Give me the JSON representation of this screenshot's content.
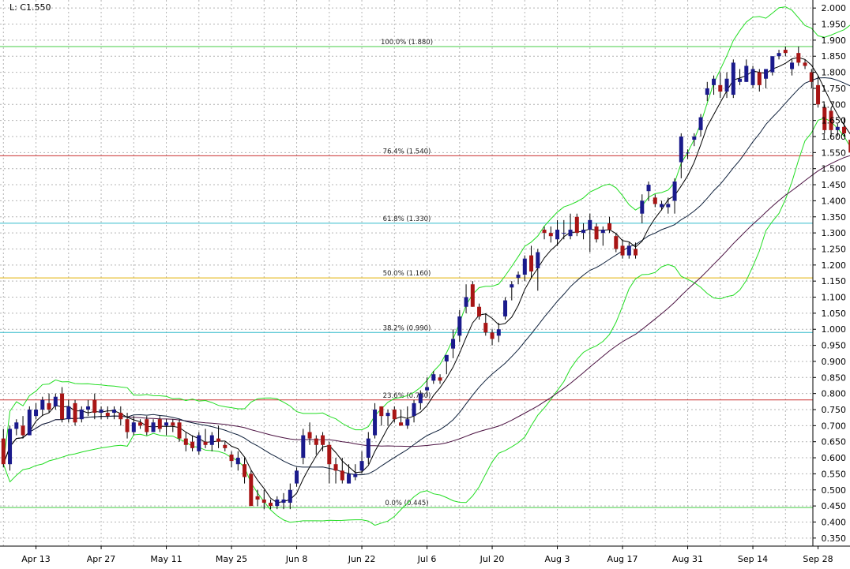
{
  "header_text": "L: C1.550",
  "chart_data": {
    "type": "candlestick",
    "y_range": [
      0.325,
      2.025
    ],
    "y_ticks": [
      "0.350",
      "0.400",
      "0.450",
      "0.500",
      "0.550",
      "0.600",
      "0.650",
      "0.700",
      "0.750",
      "0.800",
      "0.850",
      "0.900",
      "0.950",
      "1.000",
      "1.050",
      "1.100",
      "1.150",
      "1.200",
      "1.250",
      "1.300",
      "1.350",
      "1.400",
      "1.450",
      "1.500",
      "1.550",
      "1.600",
      "1.650",
      "1.700",
      "1.750",
      "1.800",
      "1.850",
      "1.900",
      "1.950",
      "2.000"
    ],
    "x_labels": [
      {
        "label": "Apr 13",
        "index": 5
      },
      {
        "label": "Apr 27",
        "index": 15
      },
      {
        "label": "May 11",
        "index": 25
      },
      {
        "label": "May 25",
        "index": 35
      },
      {
        "label": "Jun 8",
        "index": 45
      },
      {
        "label": "Jun 22",
        "index": 55
      },
      {
        "label": "Jul 6",
        "index": 65
      },
      {
        "label": "Jul 20",
        "index": 75
      },
      {
        "label": "Aug 3",
        "index": 85
      },
      {
        "label": "Aug 17",
        "index": 95
      },
      {
        "label": "Aug 31",
        "index": 105
      },
      {
        "label": "Sep 14",
        "index": 115
      },
      {
        "label": "Sep 28",
        "index": 125
      }
    ],
    "grid": true,
    "candle_colors": {
      "up": "#1a1a8c",
      "down": "#a81515",
      "wick": "#000000"
    },
    "fib_levels": [
      {
        "label": "100.0% (1.880)",
        "value": 1.88,
        "color": "#44cc44"
      },
      {
        "label": "76.4% (1.540)",
        "value": 1.54,
        "color": "#cc3333"
      },
      {
        "label": "61.8% (1.330)",
        "value": 1.33,
        "color": "#33bbcc"
      },
      {
        "label": "50.0% (1.160)",
        "value": 1.16,
        "color": "#e0b000"
      },
      {
        "label": "38.2% (0.990)",
        "value": 0.99,
        "color": "#33bbcc"
      },
      {
        "label": "23.6% (0.780)",
        "value": 0.78,
        "color": "#cc3333"
      },
      {
        "label": "0.0% (0.445)",
        "value": 0.445,
        "color": "#44cc44"
      }
    ],
    "candles": [
      [
        0.66,
        0.69,
        0.57,
        0.58
      ],
      [
        0.58,
        0.7,
        0.56,
        0.69
      ],
      [
        0.69,
        0.72,
        0.67,
        0.71
      ],
      [
        0.7,
        0.73,
        0.66,
        0.67
      ],
      [
        0.67,
        0.76,
        0.67,
        0.75
      ],
      [
        0.73,
        0.77,
        0.72,
        0.75
      ],
      [
        0.75,
        0.79,
        0.73,
        0.78
      ],
      [
        0.77,
        0.8,
        0.74,
        0.75
      ],
      [
        0.76,
        0.8,
        0.75,
        0.79
      ],
      [
        0.8,
        0.82,
        0.71,
        0.72
      ],
      [
        0.72,
        0.78,
        0.71,
        0.76
      ],
      [
        0.77,
        0.78,
        0.7,
        0.71
      ],
      [
        0.72,
        0.76,
        0.71,
        0.75
      ],
      [
        0.75,
        0.78,
        0.73,
        0.76
      ],
      [
        0.78,
        0.8,
        0.72,
        0.74
      ],
      [
        0.74,
        0.76,
        0.72,
        0.75
      ],
      [
        0.74,
        0.76,
        0.72,
        0.73
      ],
      [
        0.74,
        0.76,
        0.72,
        0.75
      ],
      [
        0.74,
        0.76,
        0.7,
        0.72
      ],
      [
        0.72,
        0.74,
        0.66,
        0.68
      ],
      [
        0.68,
        0.73,
        0.67,
        0.71
      ],
      [
        0.71,
        0.72,
        0.69,
        0.7
      ],
      [
        0.72,
        0.73,
        0.67,
        0.68
      ],
      [
        0.68,
        0.72,
        0.68,
        0.71
      ],
      [
        0.72,
        0.73,
        0.68,
        0.69
      ],
      [
        0.7,
        0.72,
        0.67,
        0.71
      ],
      [
        0.71,
        0.72,
        0.68,
        0.7
      ],
      [
        0.71,
        0.72,
        0.65,
        0.66
      ],
      [
        0.66,
        0.68,
        0.62,
        0.64
      ],
      [
        0.65,
        0.67,
        0.62,
        0.63
      ],
      [
        0.62,
        0.68,
        0.61,
        0.67
      ],
      [
        0.65,
        0.69,
        0.63,
        0.64
      ],
      [
        0.64,
        0.68,
        0.62,
        0.67
      ],
      [
        0.66,
        0.7,
        0.63,
        0.65
      ],
      [
        0.64,
        0.65,
        0.62,
        0.63
      ],
      [
        0.61,
        0.62,
        0.57,
        0.59
      ],
      [
        0.58,
        0.62,
        0.56,
        0.6
      ],
      [
        0.58,
        0.6,
        0.52,
        0.54
      ],
      [
        0.55,
        0.56,
        0.45,
        0.45
      ],
      [
        0.48,
        0.5,
        0.45,
        0.47
      ],
      [
        0.47,
        0.5,
        0.44,
        0.46
      ],
      [
        0.46,
        0.47,
        0.44,
        0.45
      ],
      [
        0.45,
        0.48,
        0.44,
        0.47
      ],
      [
        0.46,
        0.49,
        0.44,
        0.47
      ],
      [
        0.46,
        0.52,
        0.44,
        0.5
      ],
      [
        0.52,
        0.57,
        0.51,
        0.56
      ],
      [
        0.6,
        0.69,
        0.58,
        0.67
      ],
      [
        0.68,
        0.71,
        0.64,
        0.66
      ],
      [
        0.66,
        0.67,
        0.61,
        0.64
      ],
      [
        0.67,
        0.68,
        0.62,
        0.64
      ],
      [
        0.64,
        0.65,
        0.52,
        0.58
      ],
      [
        0.58,
        0.6,
        0.52,
        0.56
      ],
      [
        0.56,
        0.6,
        0.52,
        0.53
      ],
      [
        0.52,
        0.58,
        0.52,
        0.55
      ],
      [
        0.54,
        0.58,
        0.53,
        0.55
      ],
      [
        0.56,
        0.62,
        0.55,
        0.59
      ],
      [
        0.6,
        0.68,
        0.58,
        0.66
      ],
      [
        0.67,
        0.77,
        0.66,
        0.75
      ],
      [
        0.76,
        0.76,
        0.7,
        0.73
      ],
      [
        0.73,
        0.75,
        0.7,
        0.74
      ],
      [
        0.75,
        0.76,
        0.71,
        0.72
      ],
      [
        0.71,
        0.75,
        0.7,
        0.7
      ],
      [
        0.7,
        0.76,
        0.69,
        0.72
      ],
      [
        0.73,
        0.78,
        0.71,
        0.77
      ],
      [
        0.77,
        0.81,
        0.75,
        0.8
      ],
      [
        0.81,
        0.85,
        0.79,
        0.82
      ],
      [
        0.84,
        0.87,
        0.83,
        0.86
      ],
      [
        0.85,
        0.86,
        0.83,
        0.84
      ],
      [
        0.9,
        0.92,
        0.86,
        0.92
      ],
      [
        0.94,
        1.0,
        0.91,
        0.97
      ],
      [
        0.98,
        1.06,
        0.96,
        1.04
      ],
      [
        1.07,
        1.14,
        1.05,
        1.1
      ],
      [
        1.14,
        1.15,
        1.07,
        1.07
      ],
      [
        1.07,
        1.08,
        1.03,
        1.04
      ],
      [
        1.02,
        1.05,
        0.98,
        0.99
      ],
      [
        0.99,
        1.0,
        0.95,
        0.97
      ],
      [
        0.98,
        1.02,
        0.96,
        1.0
      ],
      [
        1.04,
        1.1,
        1.03,
        1.09
      ],
      [
        1.13,
        1.15,
        1.09,
        1.14
      ],
      [
        1.16,
        1.18,
        1.14,
        1.17
      ],
      [
        1.17,
        1.23,
        1.15,
        1.22
      ],
      [
        1.23,
        1.26,
        1.16,
        1.18
      ],
      [
        1.19,
        1.25,
        1.12,
        1.24
      ],
      [
        1.31,
        1.32,
        1.28,
        1.3
      ],
      [
        1.3,
        1.32,
        1.27,
        1.29
      ],
      [
        1.28,
        1.34,
        1.26,
        1.31
      ],
      [
        1.3,
        1.34,
        1.28,
        1.3
      ],
      [
        1.29,
        1.36,
        1.28,
        1.31
      ],
      [
        1.35,
        1.36,
        1.29,
        1.3
      ],
      [
        1.3,
        1.33,
        1.28,
        1.31
      ],
      [
        1.31,
        1.36,
        1.24,
        1.34
      ],
      [
        1.32,
        1.33,
        1.27,
        1.28
      ],
      [
        1.3,
        1.32,
        1.26,
        1.31
      ],
      [
        1.33,
        1.35,
        1.3,
        1.31
      ],
      [
        1.29,
        1.3,
        1.24,
        1.25
      ],
      [
        1.26,
        1.28,
        1.22,
        1.23
      ],
      [
        1.23,
        1.27,
        1.22,
        1.26
      ],
      [
        1.25,
        1.27,
        1.22,
        1.23
      ],
      [
        1.36,
        1.42,
        1.33,
        1.4
      ],
      [
        1.43,
        1.46,
        1.4,
        1.45
      ],
      [
        1.41,
        1.42,
        1.38,
        1.39
      ],
      [
        1.38,
        1.4,
        1.37,
        1.39
      ],
      [
        1.38,
        1.41,
        1.36,
        1.39
      ],
      [
        1.4,
        1.47,
        1.36,
        1.46
      ],
      [
        1.52,
        1.61,
        1.47,
        1.6
      ],
      [
        1.55,
        1.56,
        1.53,
        1.55
      ],
      [
        1.59,
        1.61,
        1.57,
        1.6
      ],
      [
        1.62,
        1.67,
        1.6,
        1.66
      ],
      [
        1.73,
        1.77,
        1.71,
        1.75
      ],
      [
        1.76,
        1.79,
        1.73,
        1.78
      ],
      [
        1.76,
        1.8,
        1.72,
        1.74
      ],
      [
        1.74,
        1.8,
        1.72,
        1.78
      ],
      [
        1.73,
        1.84,
        1.72,
        1.83
      ],
      [
        1.77,
        1.81,
        1.76,
        1.78
      ],
      [
        1.77,
        1.84,
        1.77,
        1.82
      ],
      [
        1.76,
        1.82,
        1.75,
        1.81
      ],
      [
        1.8,
        1.81,
        1.74,
        1.76
      ],
      [
        1.78,
        1.81,
        1.75,
        1.81
      ],
      [
        1.8,
        1.85,
        1.79,
        1.85
      ],
      [
        1.85,
        1.87,
        1.84,
        1.86
      ],
      [
        1.87,
        1.88,
        1.85,
        1.86
      ],
      [
        1.81,
        1.84,
        1.79,
        1.83
      ],
      [
        1.86,
        1.88,
        1.82,
        1.83
      ],
      [
        1.83,
        1.84,
        1.81,
        1.82
      ],
      [
        1.8,
        1.81,
        1.75,
        1.77
      ],
      [
        1.76,
        1.79,
        1.69,
        1.7
      ],
      [
        1.69,
        1.7,
        1.61,
        1.62
      ],
      [
        1.68,
        1.69,
        1.6,
        1.62
      ],
      [
        1.62,
        1.64,
        1.6,
        1.63
      ],
      [
        1.63,
        1.66,
        1.6,
        1.61
      ],
      [
        1.59,
        1.59,
        1.53,
        1.55
      ]
    ]
  }
}
